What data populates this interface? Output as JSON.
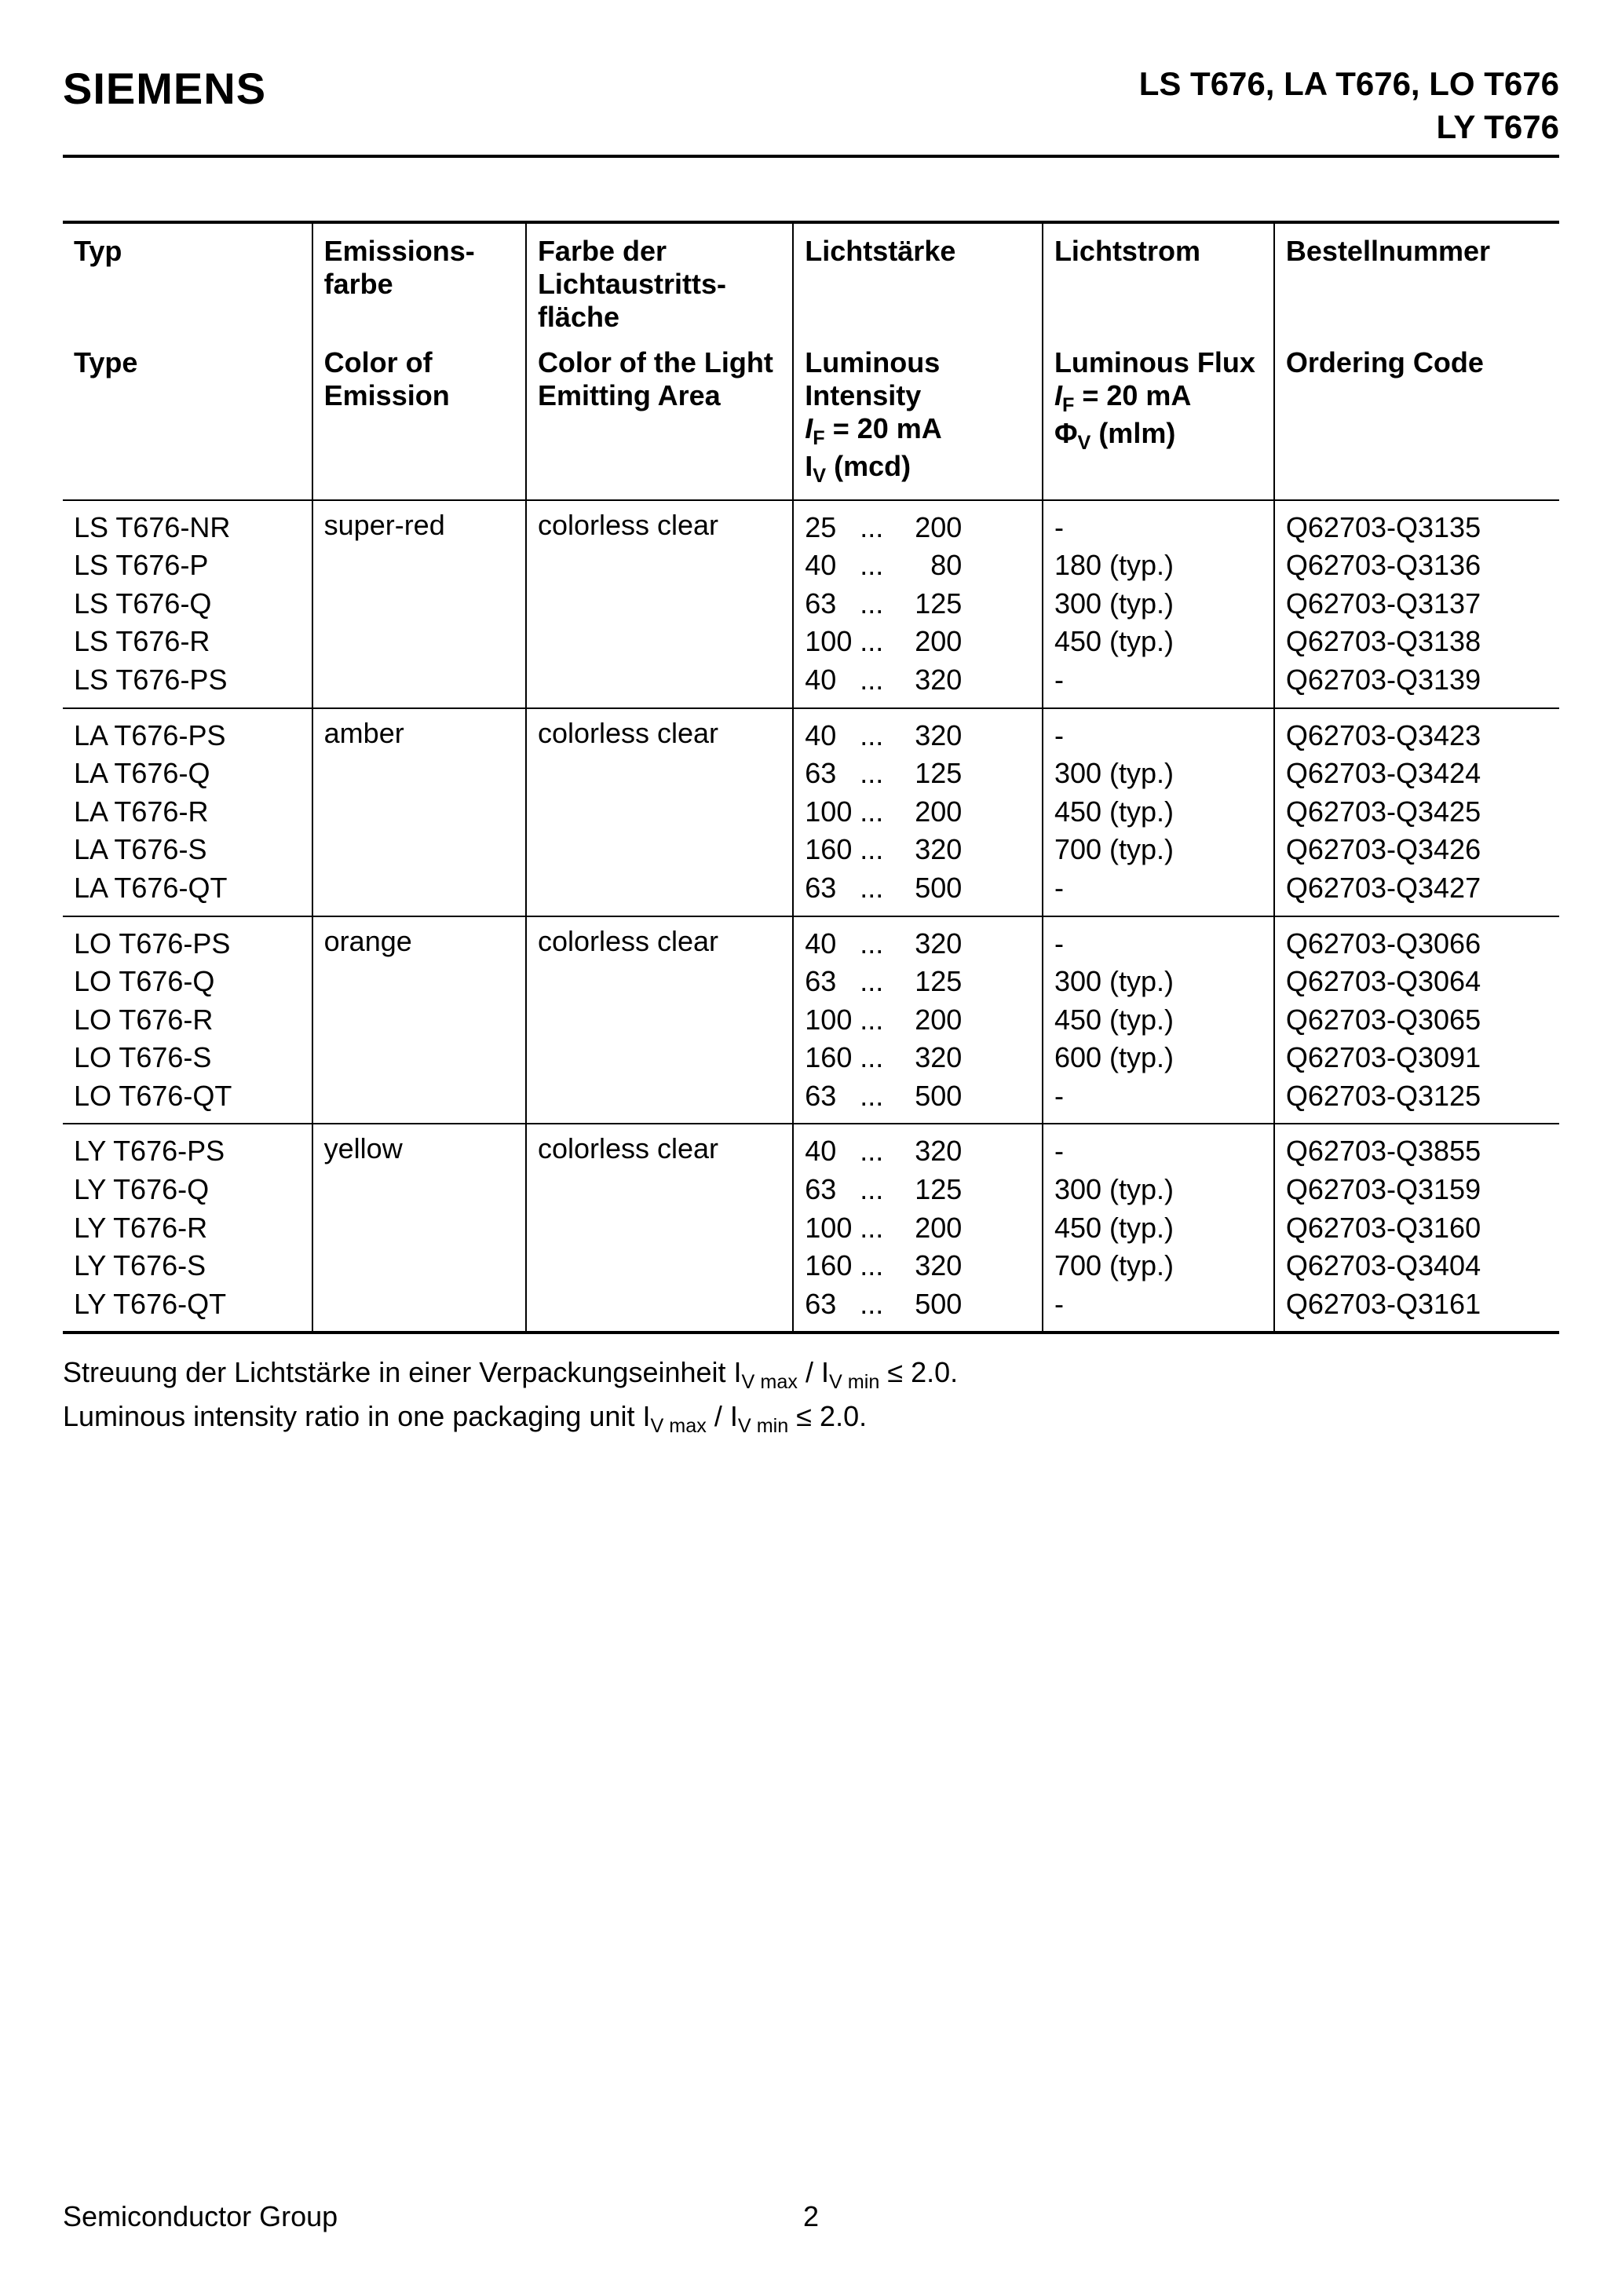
{
  "header": {
    "logo": "SIEMENS",
    "title_line1": "LS T676, LA T676, LO T676",
    "title_line2": "LY T676"
  },
  "table": {
    "headers_de": {
      "type": "Typ",
      "emission": "Emissions-farbe",
      "area": "Farbe der Lichtaustritts-fläche",
      "intensity": "Lichtstärke",
      "flux": "Lichtstrom",
      "code": "Bestellnummer"
    },
    "headers_en": {
      "type": "Type",
      "emission": "Color of Emission",
      "area": "Color of the Light Emitting Area",
      "intensity_l1": "Luminous Intensity",
      "flux_l1": "Luminous Flux",
      "code": "Ordering Code"
    },
    "col_widths": {
      "type": "14%",
      "emission": "12%",
      "area": "15%",
      "intensity": "14%",
      "flux": "13%",
      "code": "16%"
    },
    "groups": [
      {
        "emission": "super-red",
        "area": "colorless clear",
        "types": [
          "LS T676-NR",
          "LS T676-P",
          "LS T676-Q",
          "LS T676-R",
          "LS T676-PS"
        ],
        "intensity": [
          {
            "min": "25",
            "max": "200"
          },
          {
            "min": "40",
            "max": "80"
          },
          {
            "min": "63",
            "max": "125"
          },
          {
            "min": "100",
            "max": "200"
          },
          {
            "min": "40",
            "max": "320"
          }
        ],
        "flux": [
          "-",
          "180 (typ.)",
          "300 (typ.)",
          "450 (typ.)",
          "-"
        ],
        "codes": [
          "Q62703-Q3135",
          "Q62703-Q3136",
          "Q62703-Q3137",
          "Q62703-Q3138",
          "Q62703-Q3139"
        ]
      },
      {
        "emission": "amber",
        "area": "colorless clear",
        "types": [
          "LA T676-PS",
          "LA T676-Q",
          "LA T676-R",
          "LA T676-S",
          "LA T676-QT"
        ],
        "intensity": [
          {
            "min": "40",
            "max": "320"
          },
          {
            "min": "63",
            "max": "125"
          },
          {
            "min": "100",
            "max": "200"
          },
          {
            "min": "160",
            "max": "320"
          },
          {
            "min": "63",
            "max": "500"
          }
        ],
        "flux": [
          "-",
          "300 (typ.)",
          "450 (typ.)",
          "700 (typ.)",
          "-"
        ],
        "codes": [
          "Q62703-Q3423",
          "Q62703-Q3424",
          "Q62703-Q3425",
          "Q62703-Q3426",
          "Q62703-Q3427"
        ]
      },
      {
        "emission": "orange",
        "area": "colorless clear",
        "types": [
          "LO T676-PS",
          "LO T676-Q",
          "LO T676-R",
          "LO T676-S",
          "LO T676-QT"
        ],
        "intensity": [
          {
            "min": "40",
            "max": "320"
          },
          {
            "min": "63",
            "max": "125"
          },
          {
            "min": "100",
            "max": "200"
          },
          {
            "min": "160",
            "max": "320"
          },
          {
            "min": "63",
            "max": "500"
          }
        ],
        "flux": [
          "-",
          "300 (typ.)",
          "450 (typ.)",
          "600 (typ.)",
          "-"
        ],
        "codes": [
          "Q62703-Q3066",
          "Q62703-Q3064",
          "Q62703-Q3065",
          "Q62703-Q3091",
          "Q62703-Q3125"
        ]
      },
      {
        "emission": "yellow",
        "area": "colorless clear",
        "types": [
          "LY T676-PS",
          "LY T676-Q",
          "LY T676-R",
          "LY T676-S",
          "LY T676-QT"
        ],
        "intensity": [
          {
            "min": "40",
            "max": "320"
          },
          {
            "min": "63",
            "max": "125"
          },
          {
            "min": "100",
            "max": "200"
          },
          {
            "min": "160",
            "max": "320"
          },
          {
            "min": "63",
            "max": "500"
          }
        ],
        "flux": [
          "-",
          "300 (typ.)",
          "450 (typ.)",
          "700 (typ.)",
          "-"
        ],
        "codes": [
          "Q62703-Q3855",
          "Q62703-Q3159",
          "Q62703-Q3160",
          "Q62703-Q3404",
          "Q62703-Q3161"
        ]
      }
    ]
  },
  "footnote": {
    "de_prefix": "Streuung der Lichtstärke in einer Verpackungseinheit ",
    "en_prefix": "Luminous intensity ratio  in one packaging unit ",
    "ratio_text": " ≤ 2.0."
  },
  "footer": {
    "left": "Semiconductor Group",
    "page": "2"
  }
}
